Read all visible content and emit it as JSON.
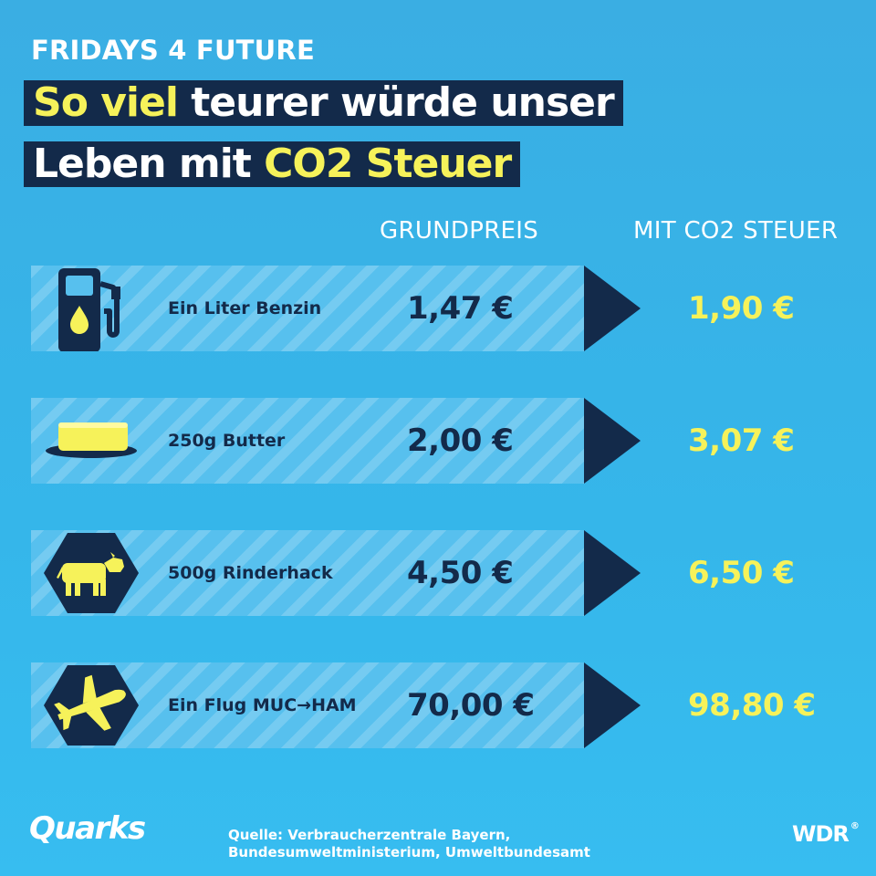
{
  "header": {
    "kicker": "FRIDAYS 4 FUTURE",
    "headline_line1_highlight": "So viel",
    "headline_line1_rest": " teurer würde unser",
    "headline_line2_start": "Leben mit ",
    "headline_line2_highlight": "CO2 Steuer"
  },
  "columns": {
    "base_price": "GRUNDPREIS",
    "with_co2": "MIT CO2 STEUER"
  },
  "items": [
    {
      "label": "Ein Liter Benzin",
      "base": "1,47 €",
      "co2": "1,90 €",
      "icon": "fuel-pump-icon"
    },
    {
      "label": "250g Butter",
      "base": "2,00 €",
      "co2": "3,07 €",
      "icon": "butter-icon"
    },
    {
      "label": "500g Rinderhack",
      "base": "4,50 €",
      "co2": "6,50 €",
      "icon": "cow-icon"
    },
    {
      "label": "Ein Flug MUC→HAM",
      "base": "70,00 €",
      "co2": "98,80 €",
      "icon": "airplane-icon"
    }
  ],
  "footer": {
    "brand": "Quarks",
    "source": "Quelle: Verbraucherzentrale Bayern, Bundesumweltministerium, Umweltbundesamt",
    "broadcaster": "WDR"
  },
  "colors": {
    "background": "#37b5ea",
    "navy": "#132a4a",
    "yellow": "#f6f25a",
    "white": "#ffffff"
  }
}
